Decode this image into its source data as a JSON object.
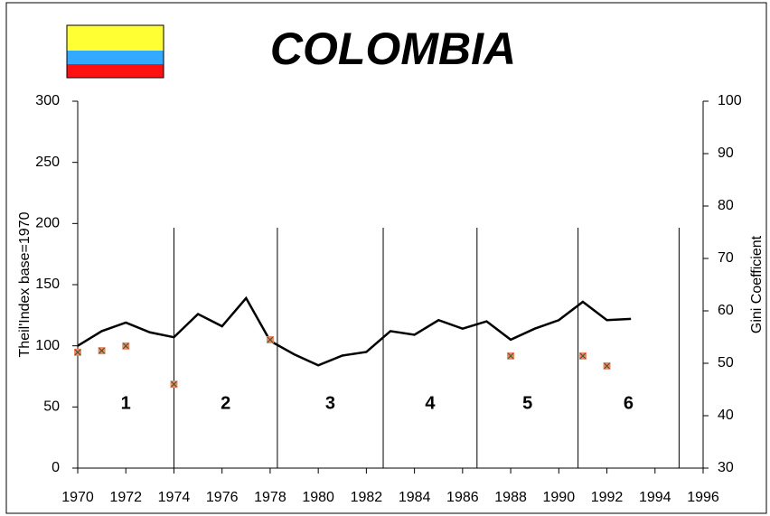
{
  "chart_data": {
    "type": "line",
    "title": "COLOMBIA",
    "y_label": "Theil'Index base=1970",
    "y2_label": "Gini Coefficient",
    "xlim": [
      1970,
      1996
    ],
    "xticks": [
      1970,
      1972,
      1974,
      1976,
      1978,
      1980,
      1982,
      1984,
      1986,
      1988,
      1990,
      1992,
      1994,
      1996
    ],
    "ylim": [
      0,
      300
    ],
    "yticks": [
      0,
      50,
      100,
      150,
      200,
      250,
      300
    ],
    "y2lim": [
      30,
      100
    ],
    "y2ticks": [
      30,
      40,
      50,
      60,
      70,
      80,
      90,
      100
    ],
    "series": [
      {
        "name": "Theil Index",
        "color": "#000000",
        "axis": "y",
        "x": [
          1970,
          1971,
          1972,
          1973,
          1974,
          1975,
          1976,
          1977,
          1978,
          1979,
          1980,
          1981,
          1982,
          1983,
          1984,
          1985,
          1986,
          1987,
          1988,
          1989,
          1990,
          1991,
          1992,
          1993
        ],
        "values": [
          100,
          112,
          119,
          111,
          107,
          126,
          116,
          139,
          104,
          93,
          84,
          92,
          95,
          112,
          109,
          121,
          114,
          120,
          105,
          114,
          121,
          136,
          121,
          122
        ]
      },
      {
        "name": "Gini Coefficient",
        "color": "#f08a6a",
        "axis": "y2",
        "x": [
          1970,
          1971,
          1972,
          1974,
          1978,
          1988,
          1991,
          1992
        ],
        "values": [
          52.1,
          52.4,
          53.3,
          46.0,
          54.5,
          51.4,
          51.4,
          49.5
        ]
      }
    ],
    "period_boundaries": [
      1974,
      1978.3,
      1982.7,
      1986.6,
      1990.8,
      1995
    ],
    "period_labels": [
      "1",
      "2",
      "3",
      "4",
      "5",
      "6"
    ]
  }
}
